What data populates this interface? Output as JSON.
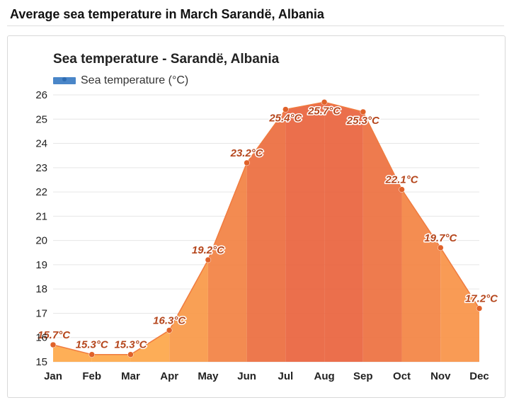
{
  "page": {
    "heading": "Average sea temperature in March Sarandë, Albania"
  },
  "chart_data": {
    "type": "area",
    "title": "Sea temperature - Sarandë, Albania",
    "categories": [
      "Jan",
      "Feb",
      "Mar",
      "Apr",
      "May",
      "Jun",
      "Jul",
      "Aug",
      "Sep",
      "Oct",
      "Nov",
      "Dec"
    ],
    "series": [
      {
        "name": "Sea temperature (°C)",
        "values": [
          15.7,
          15.3,
          15.3,
          16.3,
          19.2,
          23.2,
          25.4,
          25.7,
          25.3,
          22.1,
          19.7,
          17.2
        ],
        "labels": [
          "15.7°C",
          "15.3°C",
          "15.3°C",
          "16.3°C",
          "19.2°C",
          "23.2°C",
          "25.4°C",
          "25.7°C",
          "25.3°C",
          "22.1°C",
          "19.7°C",
          "17.2°C"
        ]
      }
    ],
    "ylim": [
      15,
      26
    ],
    "yticks": [
      "15",
      "16",
      "17",
      "18",
      "19",
      "20",
      "21",
      "22",
      "23",
      "24",
      "25",
      "26"
    ],
    "grid": true,
    "legend": "top-left",
    "colors": {
      "line": "#f07b3f",
      "point": "#e0622a",
      "cool": "#ffab4a",
      "warm": "#e8603c",
      "legend_swatch": "#4a86c8"
    }
  }
}
